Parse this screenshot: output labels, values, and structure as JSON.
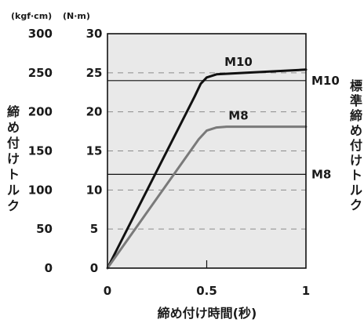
{
  "chart_data": {
    "type": "line",
    "unit_left": "(kgf·cm)",
    "unit_right": "(N·m)",
    "xlabel": "締め付け時間(秒)",
    "ylabel": "締め付けトルク",
    "right_label": "標準締め付けトルク",
    "xlim": [
      0,
      1
    ],
    "ylim": [
      0,
      30
    ],
    "x_ticks": [
      {
        "value": 0,
        "label": "0"
      },
      {
        "value": 0.5,
        "label": "0.5"
      },
      {
        "value": 1,
        "label": "1"
      }
    ],
    "y_ticks_nm": [
      "0",
      "5",
      "10",
      "15",
      "20",
      "25",
      "30"
    ],
    "y_ticks_kgfcm": [
      "0",
      "50",
      "100",
      "150",
      "200",
      "250",
      "300"
    ],
    "grid": "dashed horizontal every 5 N·m",
    "background": "#e9e9e9",
    "series": [
      {
        "name": "M10",
        "color": "#111111",
        "points": [
          [
            0,
            0
          ],
          [
            0.44,
            22
          ],
          [
            0.47,
            23.6
          ],
          [
            0.5,
            24.4
          ],
          [
            0.55,
            24.8
          ],
          [
            0.7,
            25.0
          ],
          [
            1.0,
            25.4
          ]
        ]
      },
      {
        "name": "M8",
        "color": "#7a7a7a",
        "points": [
          [
            0,
            0
          ],
          [
            0.46,
            16.5
          ],
          [
            0.5,
            17.6
          ],
          [
            0.55,
            18.0
          ],
          [
            0.6,
            18.1
          ],
          [
            1.0,
            18.1
          ]
        ]
      }
    ],
    "standard_lines": [
      {
        "name": "M10",
        "value": 24
      },
      {
        "name": "M8",
        "value": 12
      }
    ]
  }
}
